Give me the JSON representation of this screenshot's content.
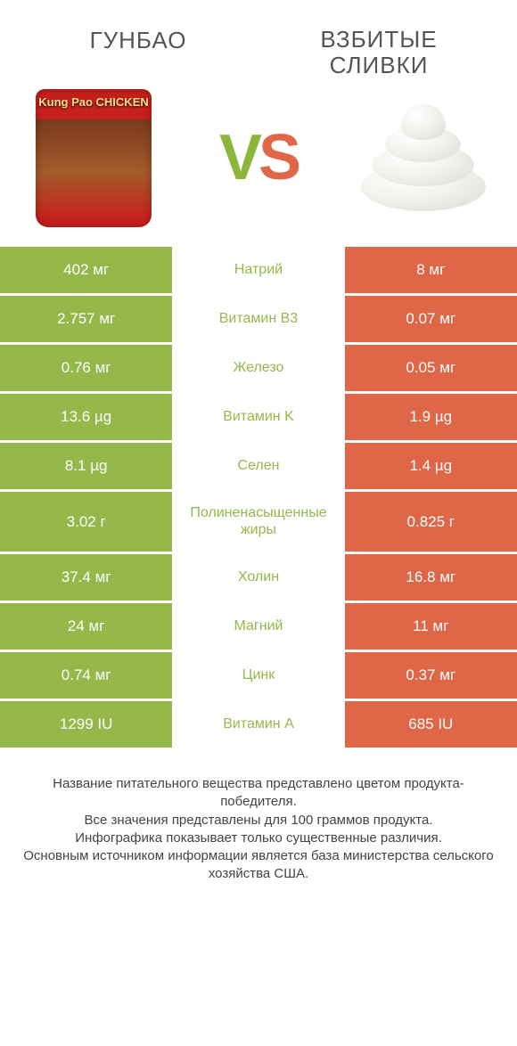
{
  "colors": {
    "left": "#95b84a",
    "right": "#e06648",
    "mid_bg": "#ffffff"
  },
  "products": {
    "left_title": "ГУНБАО",
    "right_title": "ВЗБИТЫЕ\nСЛИВКИ"
  },
  "vs": {
    "v": "V",
    "s": "S"
  },
  "rows": [
    {
      "left": "402 мг",
      "mid": "Натрий",
      "right": "8 мг",
      "winner": "left"
    },
    {
      "left": "2.757 мг",
      "mid": "Витамин B3",
      "right": "0.07 мг",
      "winner": "left"
    },
    {
      "left": "0.76 мг",
      "mid": "Железо",
      "right": "0.05 мг",
      "winner": "left"
    },
    {
      "left": "13.6 µg",
      "mid": "Витамин K",
      "right": "1.9 µg",
      "winner": "left"
    },
    {
      "left": "8.1 µg",
      "mid": "Селен",
      "right": "1.4 µg",
      "winner": "left"
    },
    {
      "left": "3.02 г",
      "mid": "Полиненасыщенные жиры",
      "right": "0.825 г",
      "winner": "left",
      "tall": true
    },
    {
      "left": "37.4 мг",
      "mid": "Холин",
      "right": "16.8 мг",
      "winner": "left"
    },
    {
      "left": "24 мг",
      "mid": "Магний",
      "right": "11 мг",
      "winner": "left"
    },
    {
      "left": "0.74 мг",
      "mid": "Цинк",
      "right": "0.37 мг",
      "winner": "left"
    },
    {
      "left": "1299 IU",
      "mid": "Витамин A",
      "right": "685 IU",
      "winner": "left"
    }
  ],
  "footer_lines": [
    "Название питательного вещества представлено цветом продукта-победителя.",
    "Все значения представлены для 100 граммов продукта.",
    "Инфографика показывает только существенные различия.",
    "Основным источником информации является база министерства сельского хозяйства США."
  ]
}
